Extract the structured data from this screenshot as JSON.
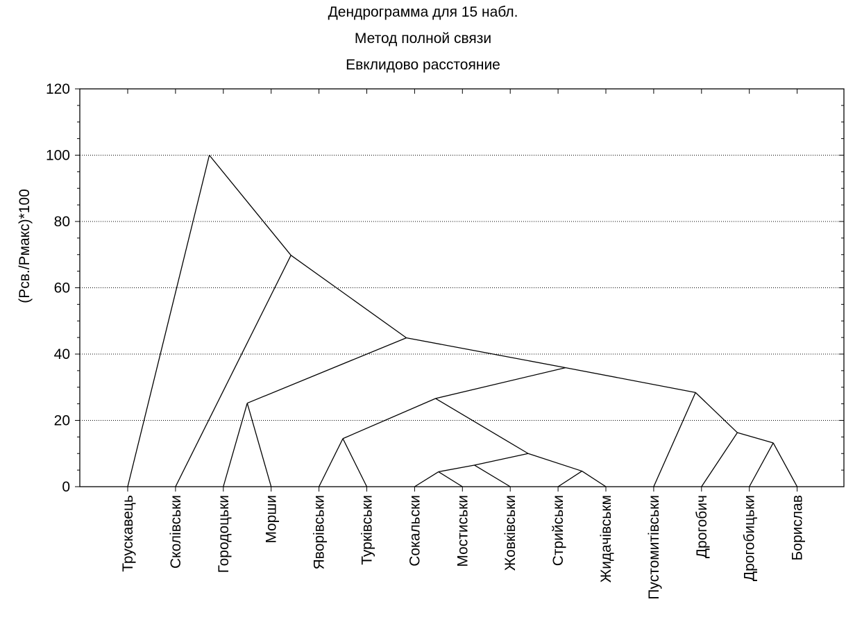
{
  "chart_data": {
    "type": "dendrogram",
    "title": [
      "Дендрограмма для 15 набл.",
      "Метод полной связи",
      "Евклидово расстояние"
    ],
    "ylabel": "(Рсв./Рмакс)*100",
    "xlabel": "",
    "ylim": [
      0,
      120
    ],
    "yticks": [
      0,
      20,
      40,
      60,
      80,
      100,
      120
    ],
    "grid": true,
    "leaves": [
      "Трускавець",
      "Сколівськи",
      "Городоцьки",
      "Морши",
      "Яворівськи",
      "Турківськи",
      "Сокальски",
      "Мостиськи",
      "Жовківськи",
      "Стрийськи",
      "Жидачівськм",
      "Пустомитівськи",
      "Дрогобич",
      "Дрогобицьки",
      "Борислав"
    ],
    "merges": [
      {
        "left": "leaf:6",
        "right": "leaf:7",
        "height": 4.5
      },
      {
        "left": "leaf:9",
        "right": "leaf:10",
        "height": 4.7
      },
      {
        "left": "node:0",
        "right": "leaf:8",
        "height": 6.5
      },
      {
        "left": "node:2",
        "right": "node:1",
        "height": 10.0
      },
      {
        "left": "leaf:13",
        "right": "leaf:14",
        "height": 13.2
      },
      {
        "left": "leaf:4",
        "right": "leaf:5",
        "height": 14.5
      },
      {
        "left": "leaf:12",
        "right": "node:4",
        "height": 16.3
      },
      {
        "left": "leaf:2",
        "right": "leaf:3",
        "height": 25.2
      },
      {
        "left": "node:5",
        "right": "node:3",
        "height": 26.6
      },
      {
        "left": "leaf:11",
        "right": "node:6",
        "height": 28.4
      },
      {
        "left": "node:8",
        "right": "node:9",
        "height": 35.9
      },
      {
        "left": "node:7",
        "right": "node:10",
        "height": 44.9
      },
      {
        "left": "leaf:1",
        "right": "node:11",
        "height": 69.8
      },
      {
        "left": "leaf:0",
        "right": "node:12",
        "height": 100.0
      }
    ]
  }
}
